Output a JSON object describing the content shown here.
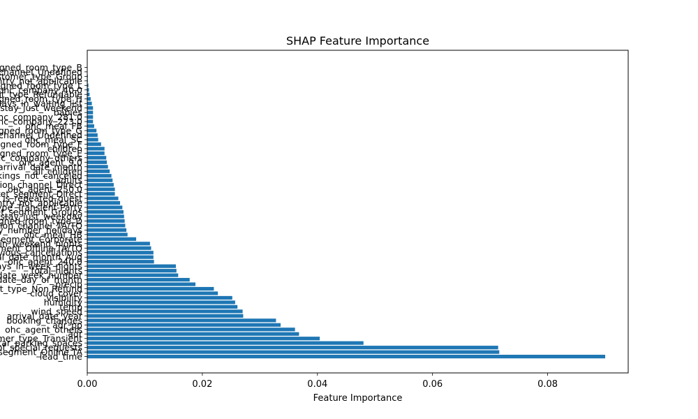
{
  "chart_data": {
    "type": "bar",
    "orientation": "horizontal",
    "title": "SHAP Feature Importance",
    "xlabel": "Feature Importance",
    "ylabel": "",
    "xlim": [
      0,
      0.094
    ],
    "xticks": [
      "0.00",
      "0.02",
      "0.04",
      "0.06",
      "0.08"
    ],
    "xtick_values": [
      0,
      0.02,
      0.04,
      0.06,
      0.08
    ],
    "grid": false,
    "bar_color": "#1f77b4",
    "categories": [
      "lead_time",
      "market_segment_Online TA",
      "total_of_special_requests",
      "required_car_parking_spaces",
      "customer_type_Transient",
      "adr",
      "ohc_agent_others",
      "adr_pp",
      "booking_changes",
      "arrival_date_year",
      "wind_speed",
      "temp",
      "humidity",
      "visibility",
      "cloud_cover",
      "deposit_type_Non Refund",
      "precip",
      "arrival_date_day_of_month",
      "arrival_date_week_number",
      "total_nights",
      "stays_in_week_nights",
      "ohc_agent_240.0",
      "arrival_date_month_Aug",
      "previous_cancellations",
      "market_segment_Offline TA/TO",
      "stays_in_weekend_nights",
      "market_segment_Corporate",
      "ohc_meal_HB",
      "is_holiday_number_holidays",
      "distribution_channel_TA/TO",
      "assigned_room_type_D",
      "stay_just_weekday",
      "market_segment_Groups",
      "customer_type_Transient-Party",
      "country_not_applicable",
      "is_repeated_guest",
      "market_segment_Direct",
      "ohc_agent_250.0",
      "distribution_channel_Direct",
      "adults",
      "previous_bookings_not_canceled",
      "all_children",
      "arrival_date_month",
      "ohc_agent_9.0",
      "ohc_company_others",
      "assigned_room_type_E",
      "children",
      "assigned_room_type_F",
      "ohc_meal_SC",
      "distribution_channel_Undefined",
      "assigned_room_type_G",
      "ohc_meal_FB",
      "ohc_company_223.0",
      "ohc_company_281.0",
      "babies",
      "stay_just_weekend",
      "days_in_waiting_list",
      "assigned_room_type_H",
      "deposit_type_Refundable",
      "ohc_company_40.0",
      "assigned_room_type_L",
      "country_not_applicable",
      "customer_type_Group",
      "distribution_channel_Undefined",
      "assigned_room_type_B"
    ],
    "values": [
      0.09,
      0.0716,
      0.0714,
      0.048,
      0.0404,
      0.0368,
      0.0361,
      0.0336,
      0.0328,
      0.0271,
      0.027,
      0.0261,
      0.0257,
      0.0252,
      0.0227,
      0.022,
      0.0188,
      0.0178,
      0.0158,
      0.0155,
      0.0154,
      0.0116,
      0.0115,
      0.0115,
      0.0111,
      0.0109,
      0.0085,
      0.007,
      0.0068,
      0.0066,
      0.0065,
      0.0064,
      0.0063,
      0.0061,
      0.0057,
      0.0054,
      0.0048,
      0.0048,
      0.0046,
      0.0044,
      0.0042,
      0.0039,
      0.0036,
      0.0034,
      0.0033,
      0.003,
      0.003,
      0.0024,
      0.0019,
      0.0018,
      0.0016,
      0.0012,
      0.001,
      0.001,
      0.001,
      0.001,
      0.0008,
      0.0006,
      0.0004,
      0.0003,
      0.0002,
      0.0001,
      0.0001,
      0.0,
      0.0
    ]
  }
}
